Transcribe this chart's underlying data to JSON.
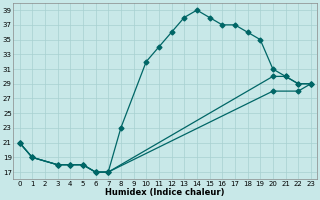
{
  "xlabel": "Humidex (Indice chaleur)",
  "bg_color": "#c8e8e8",
  "line_color": "#006666",
  "grid_color": "#a8d0d0",
  "xlim": [
    -0.5,
    23.5
  ],
  "ylim": [
    16,
    40
  ],
  "yticks": [
    17,
    19,
    21,
    23,
    25,
    27,
    29,
    31,
    33,
    35,
    37,
    39
  ],
  "xticks": [
    0,
    1,
    2,
    3,
    4,
    5,
    6,
    7,
    8,
    9,
    10,
    11,
    12,
    13,
    14,
    15,
    16,
    17,
    18,
    19,
    20,
    21,
    22,
    23
  ],
  "line1_x": [
    0,
    1,
    3,
    4,
    5,
    6,
    7,
    8,
    10,
    11,
    12,
    13,
    14,
    15,
    16,
    17,
    18,
    19,
    20,
    21,
    22,
    23
  ],
  "line1_y": [
    21,
    19,
    18,
    18,
    18,
    17,
    17,
    23,
    32,
    34,
    36,
    38,
    39,
    38,
    37,
    37,
    36,
    35,
    31,
    30,
    29,
    29
  ],
  "line2_x": [
    0,
    1,
    3,
    4,
    5,
    6,
    7,
    20,
    21,
    22,
    23
  ],
  "line2_y": [
    21,
    19,
    18,
    18,
    18,
    17,
    17,
    30,
    30,
    29,
    29
  ],
  "line3_x": [
    0,
    1,
    3,
    4,
    5,
    6,
    7,
    20,
    22,
    23
  ],
  "line3_y": [
    21,
    19,
    18,
    18,
    18,
    17,
    17,
    28,
    28,
    29
  ],
  "line1_markers_x": [
    0,
    1,
    3,
    4,
    5,
    6,
    7,
    8,
    10,
    11,
    12,
    13,
    14,
    15,
    16,
    17,
    18,
    19,
    20,
    21,
    22,
    23
  ],
  "line1_markers_y": [
    21,
    19,
    18,
    18,
    18,
    17,
    17,
    23,
    32,
    34,
    36,
    38,
    39,
    38,
    37,
    37,
    36,
    35,
    31,
    30,
    29,
    29
  ],
  "line2_markers_x": [
    0,
    1,
    3,
    4,
    5,
    6,
    7,
    20,
    21,
    22,
    23
  ],
  "line2_markers_y": [
    21,
    19,
    18,
    18,
    18,
    17,
    17,
    30,
    30,
    29,
    29
  ],
  "line3_markers_x": [
    0,
    1,
    3,
    4,
    5,
    6,
    7,
    23
  ],
  "line3_markers_y": [
    21,
    19,
    18,
    18,
    18,
    17,
    17,
    29
  ]
}
